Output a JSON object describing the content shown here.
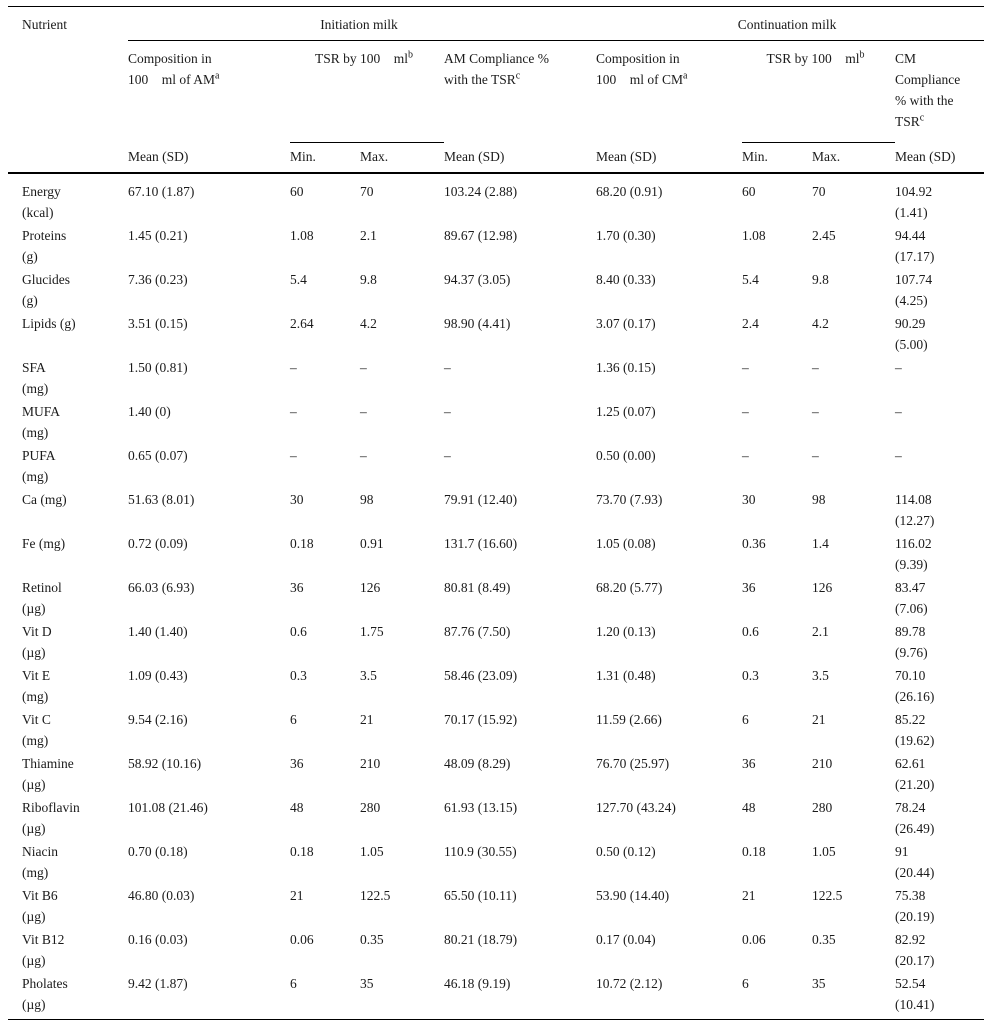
{
  "table": {
    "nutrient_header": "Nutrient",
    "groups": {
      "initiation": "Initiation milk",
      "continuation": "Continuation milk"
    },
    "subheaders": {
      "comp_am": {
        "text": "Composition in\n100  ml of AM",
        "sup": "a"
      },
      "tsr_am": {
        "text": "TSR by 100  ml",
        "sup": "b"
      },
      "compl_am": {
        "text": "AM Compliance %\nwith the TSR",
        "sup": "c"
      },
      "comp_cm": {
        "text": "Composition in\n100  ml of CM",
        "sup": "a"
      },
      "tsr_cm": {
        "text": "TSR by 100  ml",
        "sup": "b"
      },
      "compl_cm": {
        "text": "CM\nCompliance\n% with the\nTSR",
        "sup": "c"
      }
    },
    "stat_headers": {
      "mean_sd": "Mean (SD)",
      "min": "Min.",
      "max": "Max."
    },
    "rows": [
      {
        "nutrient": "Energy\n(kcal)",
        "am_mean": "67.10 (1.87)",
        "am_min": "60",
        "am_max": "70",
        "am_compl": "103.24 (2.88)",
        "cm_mean": "68.20 (0.91)",
        "cm_min": "60",
        "cm_max": "70",
        "cm_compl": "104.92\n(1.41)"
      },
      {
        "nutrient": "Proteins\n(g)",
        "am_mean": "1.45 (0.21)",
        "am_min": "1.08",
        "am_max": "2.1",
        "am_compl": "89.67 (12.98)",
        "cm_mean": "1.70 (0.30)",
        "cm_min": "1.08",
        "cm_max": "2.45",
        "cm_compl": "94.44\n(17.17)"
      },
      {
        "nutrient": "Glucides\n(g)",
        "am_mean": "7.36 (0.23)",
        "am_min": "5.4",
        "am_max": "9.8",
        "am_compl": "94.37 (3.05)",
        "cm_mean": "8.40 (0.33)",
        "cm_min": "5.4",
        "cm_max": "9.8",
        "cm_compl": "107.74\n(4.25)"
      },
      {
        "nutrient": "Lipids (g)",
        "am_mean": "3.51 (0.15)",
        "am_min": "2.64",
        "am_max": "4.2",
        "am_compl": "98.90 (4.41)",
        "cm_mean": "3.07 (0.17)",
        "cm_min": "2.4",
        "cm_max": "4.2",
        "cm_compl": "90.29\n(5.00)"
      },
      {
        "nutrient": "SFA\n(mg)",
        "am_mean": "1.50 (0.81)",
        "am_min": "–",
        "am_max": "–",
        "am_compl": "–",
        "cm_mean": "1.36 (0.15)",
        "cm_min": "–",
        "cm_max": "–",
        "cm_compl": "–"
      },
      {
        "nutrient": "MUFA\n(mg)",
        "am_mean": "1.40 (0)",
        "am_min": "–",
        "am_max": "–",
        "am_compl": "–",
        "cm_mean": "1.25 (0.07)",
        "cm_min": "–",
        "cm_max": "–",
        "cm_compl": "–"
      },
      {
        "nutrient": "PUFA\n(mg)",
        "am_mean": "0.65 (0.07)",
        "am_min": "–",
        "am_max": "–",
        "am_compl": "–",
        "cm_mean": "0.50 (0.00)",
        "cm_min": "–",
        "cm_max": "–",
        "cm_compl": "–"
      },
      {
        "nutrient": "Ca (mg)",
        "am_mean": "51.63 (8.01)",
        "am_min": "30",
        "am_max": "98",
        "am_compl": "79.91 (12.40)",
        "cm_mean": "73.70 (7.93)",
        "cm_min": "30",
        "cm_max": "98",
        "cm_compl": "114.08\n(12.27)"
      },
      {
        "nutrient": "Fe (mg)",
        "am_mean": "0.72 (0.09)",
        "am_min": "0.18",
        "am_max": "0.91",
        "am_compl": "131.7 (16.60)",
        "cm_mean": "1.05 (0.08)",
        "cm_min": "0.36",
        "cm_max": "1.4",
        "cm_compl": "116.02\n(9.39)"
      },
      {
        "nutrient": "Retinol\n(µg)",
        "am_mean": "66.03 (6.93)",
        "am_min": "36",
        "am_max": "126",
        "am_compl": "80.81 (8.49)",
        "cm_mean": "68.20 (5.77)",
        "cm_min": "36",
        "cm_max": "126",
        "cm_compl": "83.47\n(7.06)"
      },
      {
        "nutrient": "Vit D\n(µg)",
        "am_mean": "1.40 (1.40)",
        "am_min": "0.6",
        "am_max": "1.75",
        "am_compl": "87.76 (7.50)",
        "cm_mean": "1.20 (0.13)",
        "cm_min": "0.6",
        "cm_max": "2.1",
        "cm_compl": "89.78\n(9.76)"
      },
      {
        "nutrient": "Vit E\n(mg)",
        "am_mean": "1.09 (0.43)",
        "am_min": "0.3",
        "am_max": "3.5",
        "am_compl": "58.46 (23.09)",
        "cm_mean": "1.31 (0.48)",
        "cm_min": "0.3",
        "cm_max": "3.5",
        "cm_compl": "70.10\n(26.16)"
      },
      {
        "nutrient": "Vit C\n(mg)",
        "am_mean": "9.54 (2.16)",
        "am_min": "6",
        "am_max": "21",
        "am_compl": "70.17 (15.92)",
        "cm_mean": "11.59 (2.66)",
        "cm_min": "6",
        "cm_max": "21",
        "cm_compl": "85.22\n(19.62)"
      },
      {
        "nutrient": "Thiamine\n(µg)",
        "am_mean": "58.92 (10.16)",
        "am_min": "36",
        "am_max": "210",
        "am_compl": "48.09 (8.29)",
        "cm_mean": "76.70 (25.97)",
        "cm_min": "36",
        "cm_max": "210",
        "cm_compl": "62.61\n(21.20)"
      },
      {
        "nutrient": "Riboflavin\n(µg)",
        "am_mean": "101.08 (21.46)",
        "am_min": "48",
        "am_max": "280",
        "am_compl": "61.93 (13.15)",
        "cm_mean": "127.70 (43.24)",
        "cm_min": "48",
        "cm_max": "280",
        "cm_compl": "78.24\n(26.49)"
      },
      {
        "nutrient": "Niacin\n(mg)",
        "am_mean": "0.70 (0.18)",
        "am_min": "0.18",
        "am_max": "1.05",
        "am_compl": "110.9 (30.55)",
        "cm_mean": "0.50 (0.12)",
        "cm_min": "0.18",
        "cm_max": "1.05",
        "cm_compl": "91\n(20.44)"
      },
      {
        "nutrient": "Vit B6\n(µg)",
        "am_mean": "46.80 (0.03)",
        "am_min": "21",
        "am_max": "122.5",
        "am_compl": "65.50 (10.11)",
        "cm_mean": "53.90 (14.40)",
        "cm_min": "21",
        "cm_max": "122.5",
        "cm_compl": "75.38\n(20.19)"
      },
      {
        "nutrient": "Vit B12\n(µg)",
        "am_mean": "0.16 (0.03)",
        "am_min": "0.06",
        "am_max": "0.35",
        "am_compl": "80.21 (18.79)",
        "cm_mean": "0.17 (0.04)",
        "cm_min": "0.06",
        "cm_max": "0.35",
        "cm_compl": "82.92\n(20.17)"
      },
      {
        "nutrient": "Pholates\n(µg)",
        "am_mean": "9.42 (1.87)",
        "am_min": "6",
        "am_max": "35",
        "am_compl": "46.18 (9.19)",
        "cm_mean": "10.72 (2.12)",
        "cm_min": "6",
        "cm_max": "35",
        "cm_compl": "52.54\n(10.41)"
      }
    ]
  }
}
